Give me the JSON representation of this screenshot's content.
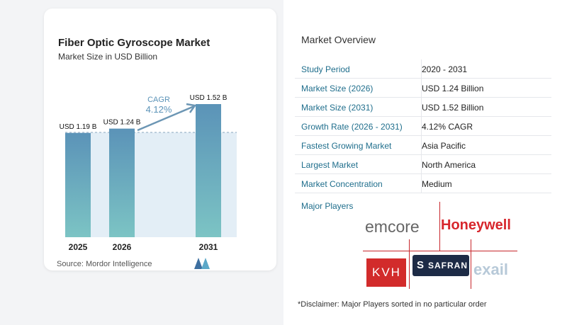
{
  "chart": {
    "title": "Fiber Optic Gyroscope Market",
    "subtitle": "Market Size in USD Billion",
    "source": "Source:  Mordor Intelligence",
    "cagr_label": "CAGR",
    "cagr_value": "4.12%"
  },
  "chart_data": {
    "type": "bar",
    "title": "Fiber Optic Gyroscope Market",
    "subtitle": "Market Size in USD Billion",
    "categories": [
      "2025",
      "2026",
      "2031"
    ],
    "values": [
      1.19,
      1.24,
      1.52
    ],
    "value_labels": [
      "USD 1.19 B",
      "USD 1.24 B",
      "USD 1.52 B"
    ],
    "ylim": [
      0,
      1.52
    ],
    "grid": false,
    "bar_color": "#5b93b8",
    "bar_color_bottom": "#7cc4c4",
    "annotation": {
      "label": "CAGR",
      "value": "4.12%"
    }
  },
  "overview": {
    "title": "Market Overview",
    "rows": [
      {
        "label": "Study Period",
        "value": "2020 - 2031"
      },
      {
        "label": "Market Size (2026)",
        "value": "USD 1.24 Billion"
      },
      {
        "label": "Market Size (2031)",
        "value": "USD 1.52 Billion"
      },
      {
        "label": "Growth Rate (2026 - 2031)",
        "value": "4.12% CAGR"
      },
      {
        "label": "Fastest Growing Market",
        "value": "Asia Pacific"
      },
      {
        "label": "Largest Market",
        "value": "North America"
      },
      {
        "label": "Market Concentration",
        "value": "Medium"
      }
    ],
    "players_label": "Major Players",
    "players": [
      "emcore",
      "Honeywell",
      "KVH",
      "SAFRAN",
      "exail"
    ],
    "disclaimer": "*Disclaimer: Major Players sorted in no particular order"
  },
  "colors": {
    "label_teal": "#1f6e8c",
    "honeywell_red": "#d7262c",
    "safran_navy": "#1d2b46",
    "kvh_red": "#d22b2b"
  }
}
